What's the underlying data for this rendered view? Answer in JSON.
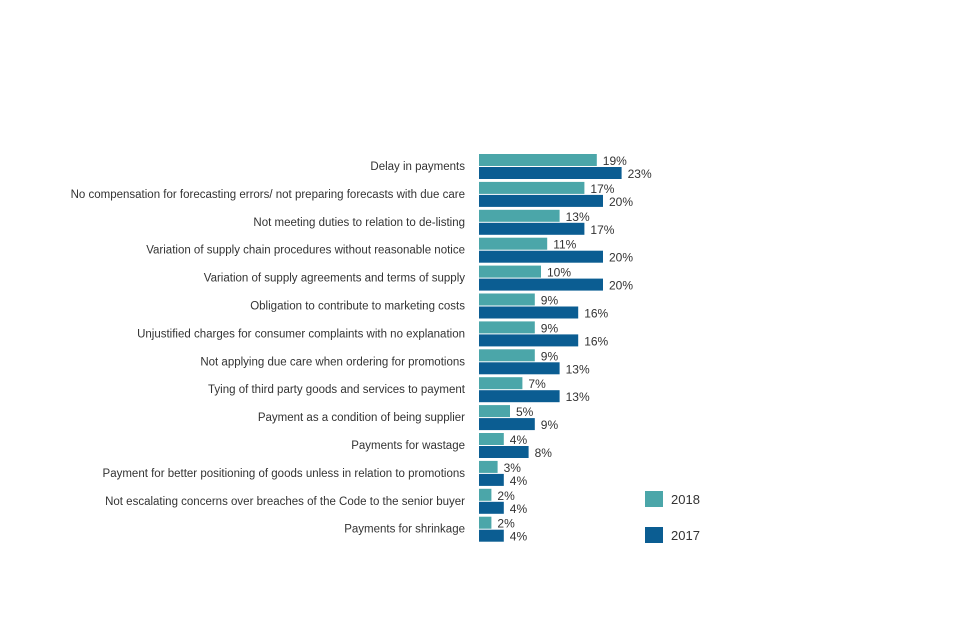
{
  "chart_data": {
    "type": "bar",
    "orientation": "horizontal",
    "title": "",
    "xlabel": "",
    "ylabel": "",
    "xlim": [
      0,
      30
    ],
    "grid": false,
    "legend_position": "bottom-right",
    "categories": [
      "Delay in payments",
      "No compensation for forecasting errors/ not preparing forecasts with due care",
      "Not meeting duties to relation to de-listing",
      "Variation of supply chain procedures without reasonable notice",
      "Variation of supply agreements and terms of supply",
      "Obligation to contribute to marketing costs",
      "Unjustified charges for consumer complaints with no explanation",
      "Not applying due care when ordering for promotions",
      "Tying of third party goods and services to payment",
      "Payment as a condition of being supplier",
      "Payments for wastage",
      "Payment for better positioning of goods unless in relation to promotions",
      "Not escalating concerns over breaches of the Code to the senior buyer",
      "Payments for shrinkage"
    ],
    "series": [
      {
        "name": "2018",
        "color": "#4ba6a9",
        "values": [
          19,
          17,
          13,
          11,
          10,
          9,
          9,
          9,
          7,
          5,
          4,
          3,
          2,
          2
        ],
        "labels": [
          "19%",
          "17%",
          "13%",
          "11%",
          "10%",
          "9%",
          "9%",
          "9%",
          "7%",
          "5%",
          "4%",
          "3%",
          "2%",
          "2%"
        ]
      },
      {
        "name": "2017",
        "color": "#0b5d92",
        "values": [
          23,
          20,
          17,
          20,
          20,
          16,
          16,
          13,
          13,
          9,
          8,
          4,
          4,
          4
        ],
        "labels": [
          "23%",
          "20%",
          "17%",
          "20%",
          "20%",
          "16%",
          "16%",
          "13%",
          "13%",
          "9%",
          "8%",
          "4%",
          "4%",
          "4%"
        ]
      }
    ]
  }
}
